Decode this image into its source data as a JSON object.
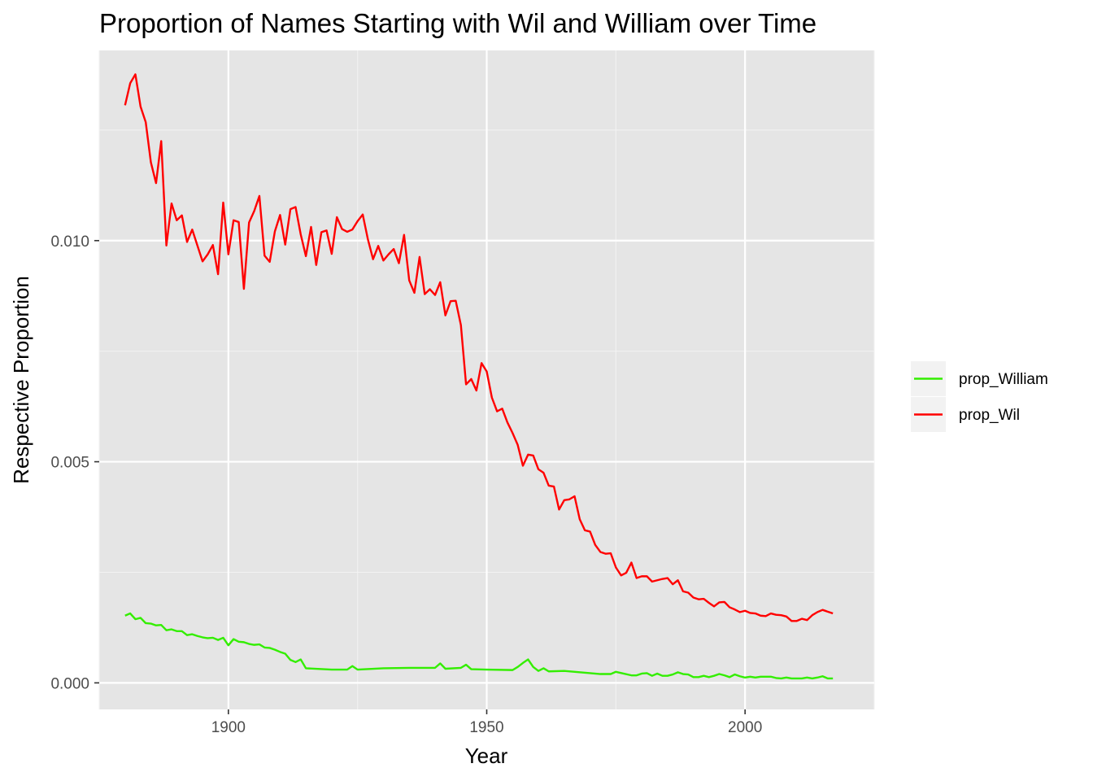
{
  "chart_data": {
    "type": "line",
    "title": "Proportion of Names Starting with Wil and William over Time",
    "xlabel": "Year",
    "ylabel": "Respective Proportion",
    "xlim": [
      1875,
      2025
    ],
    "ylim": [
      -0.0006,
      0.0143
    ],
    "x_ticks": [
      1900,
      1950,
      2000
    ],
    "y_ticks": [
      0.0,
      0.005,
      0.01
    ],
    "y_tick_labels": [
      "0.000",
      "0.005",
      "0.010"
    ],
    "grid": true,
    "legend_position": "right",
    "series": [
      {
        "name": "prop_William",
        "color": "#33ee00",
        "x": [
          1880,
          1881,
          1882,
          1883,
          1884,
          1885,
          1886,
          1887,
          1888,
          1889,
          1890,
          1891,
          1892,
          1893,
          1894,
          1895,
          1896,
          1897,
          1898,
          1899,
          1900,
          1901,
          1902,
          1903,
          1904,
          1905,
          1906,
          1907,
          1908,
          1909,
          1910,
          1911,
          1912,
          1913,
          1914,
          1915,
          1920,
          1923,
          1924,
          1925,
          1930,
          1935,
          1940,
          1941,
          1942,
          1945,
          1946,
          1947,
          1950,
          1955,
          1956,
          1957,
          1958,
          1959,
          1960,
          1961,
          1962,
          1965,
          1970,
          1972,
          1973,
          1974,
          1975,
          1978,
          1979,
          1980,
          1981,
          1982,
          1983,
          1984,
          1985,
          1986,
          1987,
          1988,
          1989,
          1990,
          1991,
          1992,
          1993,
          1994,
          1995,
          1996,
          1997,
          1998,
          1999,
          2000,
          2001,
          2002,
          2003,
          2004,
          2005,
          2006,
          2007,
          2008,
          2009,
          2010,
          2011,
          2012,
          2013,
          2014,
          2015,
          2016,
          2017
        ],
        "values": [
          0.00152,
          0.00157,
          0.00144,
          0.00147,
          0.00135,
          0.00134,
          0.0013,
          0.00131,
          0.00119,
          0.00121,
          0.00117,
          0.00117,
          0.00108,
          0.0011,
          0.00106,
          0.00103,
          0.00101,
          0.00102,
          0.00097,
          0.00102,
          0.00085,
          0.00099,
          0.00093,
          0.00092,
          0.00088,
          0.00086,
          0.00087,
          0.0008,
          0.00079,
          0.00075,
          0.0007,
          0.00066,
          0.00052,
          0.00047,
          0.00053,
          0.00033,
          0.0003,
          0.0003,
          0.00038,
          0.0003,
          0.00033,
          0.00034,
          0.00034,
          0.00044,
          0.00032,
          0.00034,
          0.00041,
          0.00031,
          0.0003,
          0.00029,
          0.00036,
          0.00045,
          0.00053,
          0.00036,
          0.00027,
          0.00033,
          0.00026,
          0.00027,
          0.00022,
          0.0002,
          0.0002,
          0.0002,
          0.00025,
          0.00017,
          0.00017,
          0.00021,
          0.00022,
          0.00016,
          0.00021,
          0.00016,
          0.00016,
          0.00019,
          0.00024,
          0.0002,
          0.00019,
          0.00013,
          0.00013,
          0.00016,
          0.00013,
          0.00016,
          0.0002,
          0.00017,
          0.00013,
          0.00019,
          0.00015,
          0.00012,
          0.00014,
          0.00012,
          0.00014,
          0.00014,
          0.00014,
          0.00011,
          0.0001,
          0.00012,
          0.0001,
          0.0001,
          0.0001,
          0.00012,
          0.0001,
          0.00012,
          0.00015,
          0.0001,
          0.0001
        ]
      },
      {
        "name": "prop_Wil",
        "color": "#ff0000",
        "x": [
          1880,
          1881,
          1882,
          1883,
          1884,
          1885,
          1886,
          1887,
          1888,
          1889,
          1890,
          1891,
          1892,
          1893,
          1894,
          1895,
          1896,
          1897,
          1898,
          1899,
          1900,
          1901,
          1902,
          1903,
          1904,
          1905,
          1906,
          1907,
          1908,
          1909,
          1910,
          1911,
          1912,
          1913,
          1914,
          1915,
          1916,
          1917,
          1918,
          1919,
          1920,
          1921,
          1922,
          1923,
          1924,
          1925,
          1926,
          1927,
          1928,
          1929,
          1930,
          1931,
          1932,
          1933,
          1934,
          1935,
          1936,
          1937,
          1938,
          1939,
          1940,
          1941,
          1942,
          1943,
          1944,
          1945,
          1946,
          1947,
          1948,
          1949,
          1950,
          1951,
          1952,
          1953,
          1954,
          1955,
          1956,
          1957,
          1958,
          1959,
          1960,
          1961,
          1962,
          1963,
          1964,
          1965,
          1966,
          1967,
          1968,
          1969,
          1970,
          1971,
          1972,
          1973,
          1974,
          1975,
          1976,
          1977,
          1978,
          1979,
          1980,
          1981,
          1982,
          1983,
          1984,
          1985,
          1986,
          1987,
          1988,
          1989,
          1990,
          1991,
          1992,
          1993,
          1994,
          1995,
          1996,
          1997,
          1998,
          1999,
          2000,
          2001,
          2002,
          2003,
          2004,
          2005,
          2006,
          2007,
          2008,
          2009,
          2010,
          2011,
          2012,
          2013,
          2014,
          2015,
          2016,
          2017
        ],
        "values": [
          0.01306,
          0.01356,
          0.01376,
          0.01303,
          0.01268,
          0.01177,
          0.0113,
          0.01225,
          0.00989,
          0.01084,
          0.01046,
          0.01057,
          0.00997,
          0.01025,
          0.00989,
          0.00953,
          0.00969,
          0.0099,
          0.00924,
          0.01086,
          0.00969,
          0.01046,
          0.01042,
          0.00891,
          0.01041,
          0.01067,
          0.01101,
          0.00966,
          0.00952,
          0.01021,
          0.01058,
          0.00991,
          0.01071,
          0.01076,
          0.01014,
          0.00965,
          0.01031,
          0.00945,
          0.01019,
          0.01023,
          0.0097,
          0.01053,
          0.01026,
          0.0102,
          0.01025,
          0.01044,
          0.01059,
          0.01003,
          0.00958,
          0.00988,
          0.00955,
          0.00969,
          0.00981,
          0.00949,
          0.01013,
          0.0091,
          0.00882,
          0.00963,
          0.00879,
          0.0089,
          0.00877,
          0.00906,
          0.00831,
          0.00863,
          0.00864,
          0.00809,
          0.00675,
          0.00687,
          0.00661,
          0.00723,
          0.00704,
          0.00645,
          0.00614,
          0.0062,
          0.00589,
          0.00565,
          0.00538,
          0.00491,
          0.00516,
          0.00514,
          0.00483,
          0.00475,
          0.00446,
          0.00444,
          0.00392,
          0.00413,
          0.00415,
          0.00422,
          0.0037,
          0.00345,
          0.00342,
          0.00312,
          0.00296,
          0.00292,
          0.00293,
          0.00261,
          0.00243,
          0.00249,
          0.00272,
          0.00237,
          0.00241,
          0.00241,
          0.00229,
          0.00232,
          0.00235,
          0.00237,
          0.00223,
          0.00232,
          0.00207,
          0.00204,
          0.00193,
          0.00189,
          0.0019,
          0.00181,
          0.00173,
          0.00182,
          0.00183,
          0.00171,
          0.00166,
          0.0016,
          0.00163,
          0.00158,
          0.00157,
          0.00152,
          0.00151,
          0.00157,
          0.00154,
          0.00153,
          0.0015,
          0.0014,
          0.0014,
          0.00145,
          0.00142,
          0.00153,
          0.0016,
          0.00165,
          0.00161,
          0.00157
        ]
      }
    ]
  }
}
